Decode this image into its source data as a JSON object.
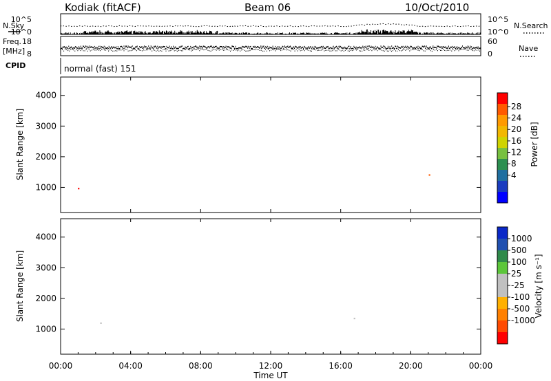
{
  "header": {
    "station": "Kodiak (fitACF)",
    "beam": "Beam 06",
    "date": "10/Oct/2010"
  },
  "chart_data": [
    {
      "type": "line",
      "name": "noise-panel",
      "left_label": "N.Sky",
      "right_label": "N.Search",
      "left_ticks": [
        "10^5",
        "10^0"
      ],
      "right_ticks": [
        "10^5",
        "10^0"
      ],
      "x_range_hours": [
        0,
        24
      ]
    },
    {
      "type": "line",
      "name": "frequency-nave-panel",
      "left_label_line1": "Freq.",
      "left_label_line2": "[MHz]",
      "right_label": "Nave",
      "left_ticks": [
        "18",
        "8"
      ],
      "right_ticks": [
        "60",
        "0"
      ],
      "x_range_hours": [
        0,
        24
      ]
    },
    {
      "type": "table",
      "name": "cpid-panel",
      "label": "CPID",
      "program": "normal (fast) 151"
    },
    {
      "type": "heatmap",
      "name": "power-panel",
      "ylabel": "Slant Range [km]",
      "yticks": [
        1000,
        2000,
        3000,
        4000
      ],
      "ylim": [
        180,
        4600
      ],
      "x_range_hours": [
        0,
        24
      ],
      "colorbar_label": "Power [dB]",
      "colorbar_ticks": [
        "28",
        "24",
        "20",
        "16",
        "12",
        "8",
        "4"
      ],
      "colorbar_colors": [
        "#ff0000",
        "#ff5a00",
        "#ff9a00",
        "#f2b700",
        "#cfd300",
        "#77c040",
        "#2c8f50",
        "#1f6fa0",
        "#1a3cbf",
        "#0000ff"
      ]
    },
    {
      "type": "heatmap",
      "name": "velocity-panel",
      "ylabel": "Slant Range [km]",
      "yticks": [
        1000,
        2000,
        3000,
        4000
      ],
      "ylim": [
        180,
        4600
      ],
      "x_range_hours": [
        0,
        24
      ],
      "colorbar_label": "Velocity [m s⁻¹]",
      "colorbar_ticks": [
        "1000",
        "500",
        "100",
        "25",
        "-25",
        "-100",
        "-500",
        "-1000"
      ],
      "colorbar_colors": [
        "#0a28c8",
        "#2050b0",
        "#2f8a4a",
        "#5cc63a",
        "#c0c0c0",
        "#c0c0c0",
        "#ffb000",
        "#ff8000",
        "#ff4a00",
        "#ff0000"
      ]
    }
  ],
  "xaxis": {
    "ticks": [
      "00:00",
      "04:00",
      "08:00",
      "12:00",
      "16:00",
      "20:00",
      "00:00"
    ],
    "label": "Time UT"
  }
}
